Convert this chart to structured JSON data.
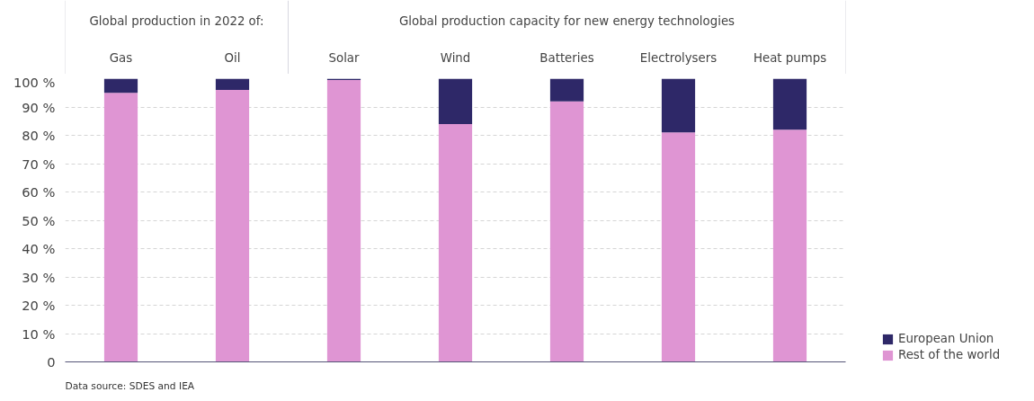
{
  "chart_data": {
    "type": "bar",
    "stacked": true,
    "categories": [
      "Gas",
      "Oil",
      "Solar",
      "Wind",
      "Batteries",
      "Electrolysers",
      "Heat pumps"
    ],
    "series": [
      {
        "name": "Rest of the world",
        "color": "#df95d3",
        "values": [
          95,
          96,
          99.5,
          84,
          92,
          81,
          82
        ]
      },
      {
        "name": "European Union",
        "color": "#2e2868",
        "values": [
          5,
          4,
          0.5,
          16,
          8,
          19,
          18
        ]
      }
    ],
    "ylim": [
      0,
      100
    ],
    "yticks": [
      0,
      {
        "value": 10,
        "label": "10 %"
      },
      {
        "value": 20,
        "label": "20 %"
      },
      {
        "value": 30,
        "label": "30 %"
      },
      {
        "value": 40,
        "label": "40 %"
      },
      {
        "value": 50,
        "label": "50 %"
      },
      {
        "value": 60,
        "label": "60 %"
      },
      {
        "value": 70,
        "label": "70 %"
      },
      {
        "value": 80,
        "label": "80 %"
      },
      {
        "value": 90,
        "label": "90 %"
      },
      {
        "value": 100,
        "label": "100 %"
      }
    ],
    "grid": "y",
    "legend": "bottom right",
    "annotations": [
      "Global production in 2022 of:",
      "Global production capacity for new energy technologies",
      "Data source: SDES and IEA"
    ]
  }
}
